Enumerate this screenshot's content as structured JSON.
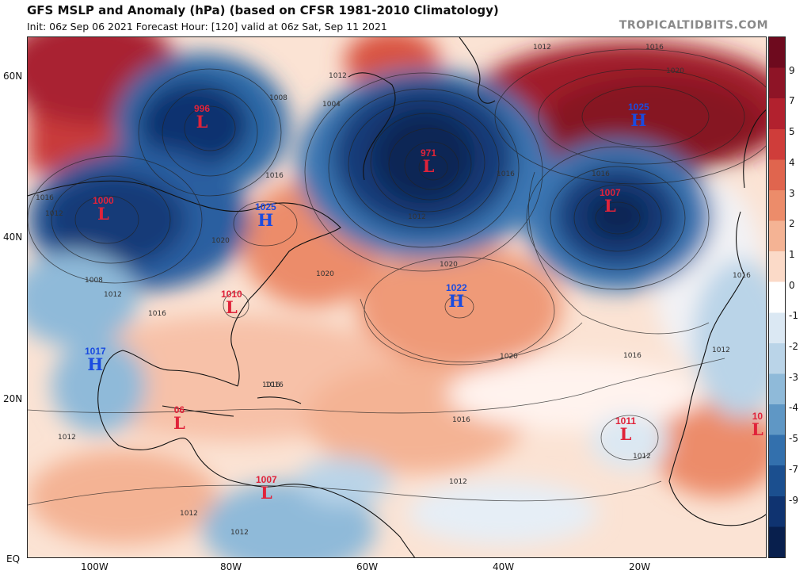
{
  "header": {
    "title": "GFS MSLP and Anomaly (hPa) (based on CFSR 1981-2010 Climatology)",
    "subtitle": "Init: 06z Sep 06 2021   Forecast Hour: [120]   valid at 06z Sat, Sep 11 2021",
    "brand": "TROPICALTIDBITS.COM"
  },
  "axes": {
    "lat_labels": [
      "60N",
      "40N",
      "20N",
      "EQ"
    ],
    "lon_labels": [
      "100W",
      "80W",
      "60W",
      "40W",
      "20W"
    ]
  },
  "colorbar": {
    "labels": [
      "9",
      "7",
      "5",
      "4",
      "3",
      "2",
      "1",
      "0",
      "-1",
      "-2",
      "-3",
      "-4",
      "-5",
      "-7",
      "-9"
    ],
    "colors": [
      "#6e0a1e",
      "#8e1426",
      "#b2212e",
      "#cf3d3a",
      "#e0654e",
      "#ec8c6a",
      "#f4b394",
      "#fbdac8",
      "#ffffff",
      "#dbe8f3",
      "#bad4e8",
      "#8fbad9",
      "#5f97c5",
      "#3370ad",
      "#1b4f8f",
      "#0f3370",
      "#081f4d"
    ]
  },
  "systems": [
    {
      "type": "L",
      "pressure": "996"
    },
    {
      "type": "L",
      "pressure": "1000"
    },
    {
      "type": "H",
      "pressure": "1025"
    },
    {
      "type": "L",
      "pressure": "971"
    },
    {
      "type": "H",
      "pressure": "1025"
    },
    {
      "type": "L",
      "pressure": "1007"
    },
    {
      "type": "L",
      "pressure": "1010"
    },
    {
      "type": "H",
      "pressure": "1022"
    },
    {
      "type": "H",
      "pressure": "1017"
    },
    {
      "type": "L",
      "pressure": "06"
    },
    {
      "type": "L",
      "pressure": "1011"
    },
    {
      "type": "L",
      "pressure": "1007"
    },
    {
      "type": "L",
      "pressure": "10"
    }
  ],
  "isobar_labels": [
    "1012",
    "1008",
    "1004",
    "1016",
    "1012",
    "1016",
    "1016",
    "1016",
    "1020",
    "1020",
    "1020",
    "1020",
    "1016",
    "1016",
    "1016",
    "1012",
    "1012",
    "1012",
    "1012",
    "1012",
    "1012",
    "1016",
    "1016",
    "1012",
    "1008",
    "1012",
    "1016",
    "1016",
    "1020",
    "1012"
  ]
}
